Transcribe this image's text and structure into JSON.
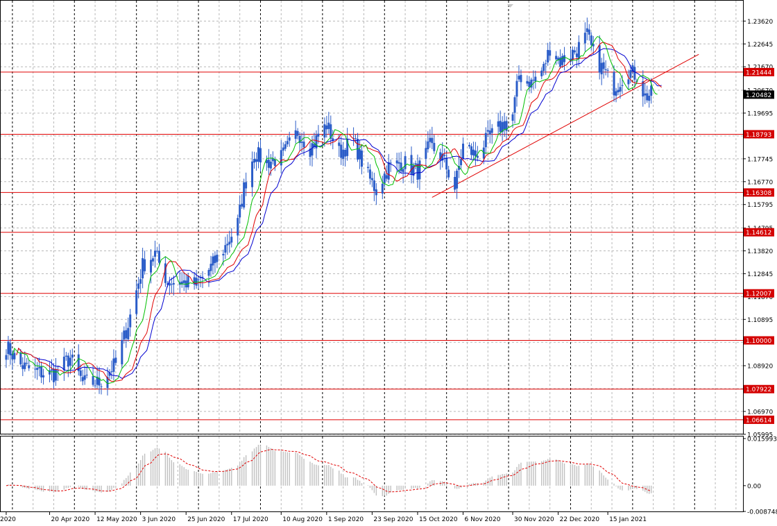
{
  "chart_data": [
    {
      "type": "candlestick",
      "panel": "price",
      "ylim": [
        1.0599,
        1.244
      ],
      "price_tick_labels": [
        "1.23620",
        "1.22645",
        "1.21670",
        "1.20670",
        "1.19695",
        "1.18720",
        "1.17745",
        "1.16770",
        "1.15795",
        "1.14795",
        "1.13820",
        "1.12845",
        "1.11870",
        "1.10895",
        "1.09920",
        "1.08920",
        "1.07945",
        "1.06970",
        "1.05995"
      ],
      "current_price": {
        "label": "1.20482",
        "value": 1.20482
      },
      "horizontal_levels": [
        {
          "label": "1.21444",
          "value": 1.21444
        },
        {
          "label": "1.18793",
          "value": 1.18793
        },
        {
          "label": "1.16308",
          "value": 1.16308
        },
        {
          "label": "1.14612",
          "value": 1.14612
        },
        {
          "label": "1.12007",
          "value": 1.12007
        },
        {
          "label": "1.10000",
          "value": 1.1
        },
        {
          "label": "1.07922",
          "value": 1.07922
        },
        {
          "label": "1.06614",
          "value": 1.06614
        }
      ],
      "trendline": {
        "from": {
          "date": "2020-10-22",
          "value": 1.161
        },
        "to": {
          "date": "2021-02-28",
          "value": 1.222
        }
      },
      "date_labels": [
        "2020",
        "20 Apr 2020",
        "12 May 2020",
        "3 Jun 2020",
        "25 Jun 2020",
        "17 Jul 2020",
        "10 Aug 2020",
        "1 Sep 2020",
        "23 Sep 2020",
        "15 Oct 2020",
        "6 Nov 2020",
        "30 Nov 2020",
        "22 Dec 2020",
        "15 Jan 2021"
      ],
      "closes_waypoints": [
        [
          "2020-03-30",
          1.0975
        ],
        [
          "2020-04-06",
          1.0895
        ],
        [
          "2020-04-13",
          1.0865
        ],
        [
          "2020-04-22",
          1.0855
        ],
        [
          "2020-04-30",
          1.0925
        ],
        [
          "2020-05-06",
          1.082
        ],
        [
          "2020-05-14",
          1.082
        ],
        [
          "2020-05-22",
          1.09
        ],
        [
          "2020-05-28",
          1.107
        ],
        [
          "2020-06-04",
          1.132
        ],
        [
          "2020-06-10",
          1.137
        ],
        [
          "2020-06-16",
          1.125
        ],
        [
          "2020-06-22",
          1.125
        ],
        [
          "2020-06-30",
          1.124
        ],
        [
          "2020-07-06",
          1.13
        ],
        [
          "2020-07-14",
          1.14
        ],
        [
          "2020-07-20",
          1.15
        ],
        [
          "2020-07-23",
          1.165
        ],
        [
          "2020-07-28",
          1.18
        ],
        [
          "2020-08-03",
          1.176
        ],
        [
          "2020-08-10",
          1.178
        ],
        [
          "2020-08-18",
          1.189
        ],
        [
          "2020-08-24",
          1.182
        ],
        [
          "2020-09-01",
          1.192
        ],
        [
          "2020-09-07",
          1.18
        ],
        [
          "2020-09-14",
          1.185
        ],
        [
          "2020-09-21",
          1.17
        ],
        [
          "2020-09-25",
          1.164
        ],
        [
          "2020-10-01",
          1.174
        ],
        [
          "2020-10-08",
          1.176
        ],
        [
          "2020-10-15",
          1.172
        ],
        [
          "2020-10-21",
          1.183
        ],
        [
          "2020-10-27",
          1.178
        ],
        [
          "2020-11-02",
          1.165
        ],
        [
          "2020-11-06",
          1.183
        ],
        [
          "2020-11-12",
          1.179
        ],
        [
          "2020-11-18",
          1.186
        ],
        [
          "2020-11-25",
          1.192
        ],
        [
          "2020-11-30",
          1.196
        ],
        [
          "2020-12-03",
          1.213
        ],
        [
          "2020-12-09",
          1.21
        ],
        [
          "2020-12-15",
          1.216
        ],
        [
          "2020-12-18",
          1.225
        ],
        [
          "2020-12-23",
          1.219
        ],
        [
          "2020-12-31",
          1.224
        ],
        [
          "2021-01-05",
          1.23
        ],
        [
          "2021-01-08",
          1.222
        ],
        [
          "2021-01-13",
          1.215
        ],
        [
          "2021-01-18",
          1.208
        ],
        [
          "2021-01-25",
          1.215
        ],
        [
          "2021-01-29",
          1.213
        ],
        [
          "2021-02-02",
          1.204
        ],
        [
          "2021-02-05",
          1.205
        ]
      ],
      "ma_fast_color": "#00c000",
      "ma_mid_color": "#e00000",
      "ma_slow_color": "#0000d0",
      "candle_color": "#2a5cc8"
    },
    {
      "type": "histogram",
      "panel": "oscillator",
      "ylim": [
        -0.008748,
        0.015993
      ],
      "tick_labels": [
        "0.015993",
        "0.00",
        "-0.008748"
      ],
      "signal_color": "#e00000",
      "bar_color": "#c0c0c0"
    }
  ],
  "axis": {
    "tick_label_color": "#000000",
    "grid_color": "#b8b8b8",
    "level_color": "#e00000",
    "level_label_bg": "#d40000",
    "price_label_bg": "#000000"
  }
}
